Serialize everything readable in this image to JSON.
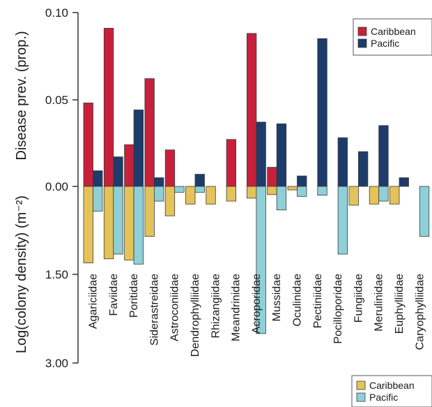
{
  "chart_data": {
    "type": "bar",
    "top_panel": {
      "ylabel": "Disease prev. (prop.)",
      "ylim": [
        0,
        0.1
      ],
      "ticks": [
        "0.10",
        "0.05",
        "0.00"
      ],
      "tick_values": [
        0.1,
        0.05,
        0.0
      ],
      "legend_position": "top-right",
      "series": [
        {
          "name": "Caribbean",
          "color": "#c8203a",
          "values": [
            0.048,
            0.091,
            0.024,
            0.062,
            0.021,
            0,
            0,
            0.027,
            0.088,
            0.011,
            0,
            0,
            0,
            0,
            0,
            0,
            0
          ]
        },
        {
          "name": "Pacific",
          "color": "#1d3c6b",
          "values": [
            0.009,
            0.017,
            0.044,
            0.005,
            0,
            0.007,
            0,
            0,
            0.037,
            0.036,
            0.006,
            0.085,
            0.028,
            0.02,
            0.035,
            0.005,
            0
          ]
        }
      ]
    },
    "bottom_panel": {
      "ylabel": "Log(colony density) (m⁻²)",
      "ylim": [
        0,
        3.0
      ],
      "ticks": [
        "0.00",
        "1.50",
        "3.00"
      ],
      "tick_values": [
        0.0,
        1.5,
        3.0
      ],
      "legend_position": "bottom-right",
      "series": [
        {
          "name": "Caribbean",
          "color": "#e3c35a",
          "values": [
            1.3,
            1.23,
            1.25,
            0.85,
            0.5,
            0.3,
            0.3,
            0.25,
            0.2,
            0.14,
            0.06,
            0,
            0,
            0.32,
            0.3,
            0.3,
            0
          ]
        },
        {
          "name": "Pacific",
          "color": "#8fd0d8",
          "values": [
            0.42,
            1.15,
            1.32,
            0.25,
            0.1,
            0.1,
            0,
            0,
            2.5,
            0.4,
            0.17,
            0.15,
            1.15,
            0,
            0.25,
            0,
            0.85
          ]
        }
      ]
    },
    "categories": [
      "Agariciidae",
      "Faviidae",
      "Poritidae",
      "Siderastreidae",
      "Astroconiidae",
      "Dendrophylliidae",
      "Rhizangiidae",
      "Meandrinidae",
      "Acroporidae",
      "Mussidae",
      "Oculinidae",
      "Pectiniidae",
      "Pocilloporidae",
      "Fungiidae",
      "Merulinidae",
      "Euphylliidae",
      "Caryophylliidae"
    ]
  }
}
